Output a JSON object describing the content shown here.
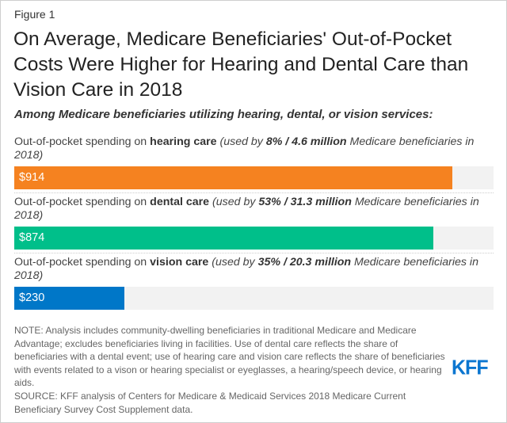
{
  "figure_label": "Figure 1",
  "chart_data": {
    "type": "bar",
    "orientation": "horizontal",
    "title": "On Average, Medicare Beneficiaries' Out-of-Pocket Costs Were Higher for Hearing and Dental Care than Vision Care in 2018",
    "subtitle": "Among Medicare beneficiaries utilizing hearing, dental, or vision services:",
    "xlim": [
      0,
      1000
    ],
    "grid": false,
    "bars": [
      {
        "label_prefix": "Out-of-pocket spending on ",
        "label_bold": "hearing care",
        "label_italic_a": " (used by ",
        "label_italic_bold": "8% / 4.6 million",
        "label_italic_b": " Medicare beneficiaries in 2018)",
        "value": 914,
        "value_label": "$914",
        "color": "#f58220"
      },
      {
        "label_prefix": "Out-of-pocket spending on ",
        "label_bold": "dental care",
        "label_italic_a": " (used by ",
        "label_italic_bold": "53% / 31.3 million",
        "label_italic_b": " Medicare beneficiaries in 2018)",
        "value": 874,
        "value_label": "$874",
        "color": "#00bf8a"
      },
      {
        "label_prefix": "Out-of-pocket spending on ",
        "label_bold": "vision care",
        "label_italic_a": " (used by ",
        "label_italic_bold": "35% / 20.3 million",
        "label_italic_b": " Medicare beneficiaries in 2018)",
        "value": 230,
        "value_label": "$230",
        "color": "#0077c8"
      }
    ]
  },
  "note": "NOTE: Analysis includes community-dwelling beneficiaries in traditional Medicare and Medicare Advantage; excludes beneficiaries living in facilities. Use of dental care reflects the share of beneficiaries with a dental event; use of hearing care and vision care reflects the share of beneficiaries with events related to a vison or hearing specialist or eyeglasses, a hearing/speech device, or hearing aids.",
  "source": "SOURCE: KFF analysis of Centers for Medicare & Medicaid Services 2018 Medicare Current Beneficiary Survey Cost Supplement data.",
  "logo": "KFF"
}
